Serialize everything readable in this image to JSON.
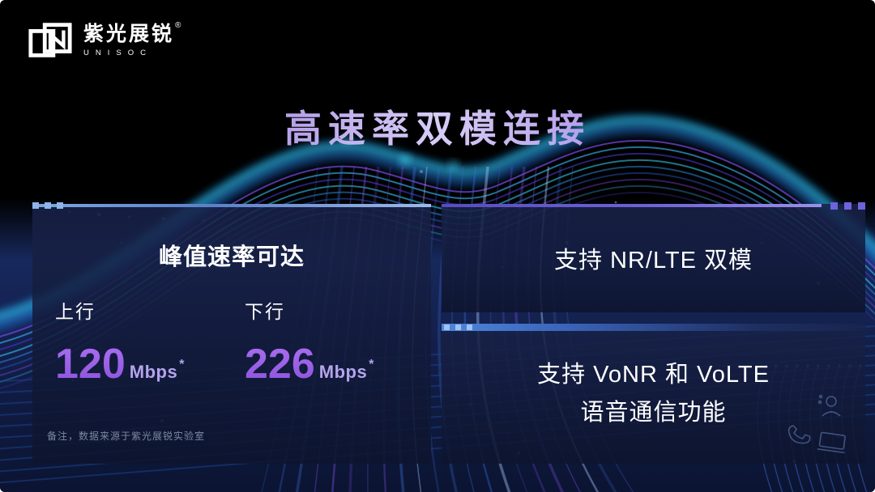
{
  "brand": {
    "logo_cn": "紫光展锐",
    "registered_mark": "®",
    "logo_en": "UNISOC"
  },
  "title": {
    "text": "高速率双模连接"
  },
  "panels": {
    "peak_rate": {
      "heading": "峰值速率可达",
      "columns": [
        {
          "label": "上行",
          "value": "120",
          "unit": "Mbps",
          "mark": "*"
        },
        {
          "label": "下行",
          "value": "226",
          "unit": "Mbps",
          "mark": "*"
        }
      ],
      "footnote": "备注，数据来源于紫光展锐实验室"
    },
    "nr_lte": {
      "text": "支持 NR/LTE 双模"
    },
    "voice": {
      "line1": "支持 VoNR 和 VoLTE",
      "line2": "语音通信功能"
    }
  },
  "colors": {
    "title_gradient": [
      "#8b52d6",
      "#d6cdf6",
      "#9d7fe6"
    ],
    "value_purple": "#9c5ce6",
    "unit_purple": "#b4a4ec",
    "left_accent_blue": "#7fa6de",
    "right_accent_purple": "#6f62dc",
    "voice_accent_blue": "#4d86dc",
    "panel_bg": "#141f46",
    "footnote_gray": "#7e88a2",
    "wave_cyan": "#38d6f5",
    "wave_blue": "#2f8fe8",
    "wave_purple": "#7a4ae0"
  },
  "decor_icons": [
    "user-icon",
    "phone-icon",
    "laptop-icon"
  ]
}
